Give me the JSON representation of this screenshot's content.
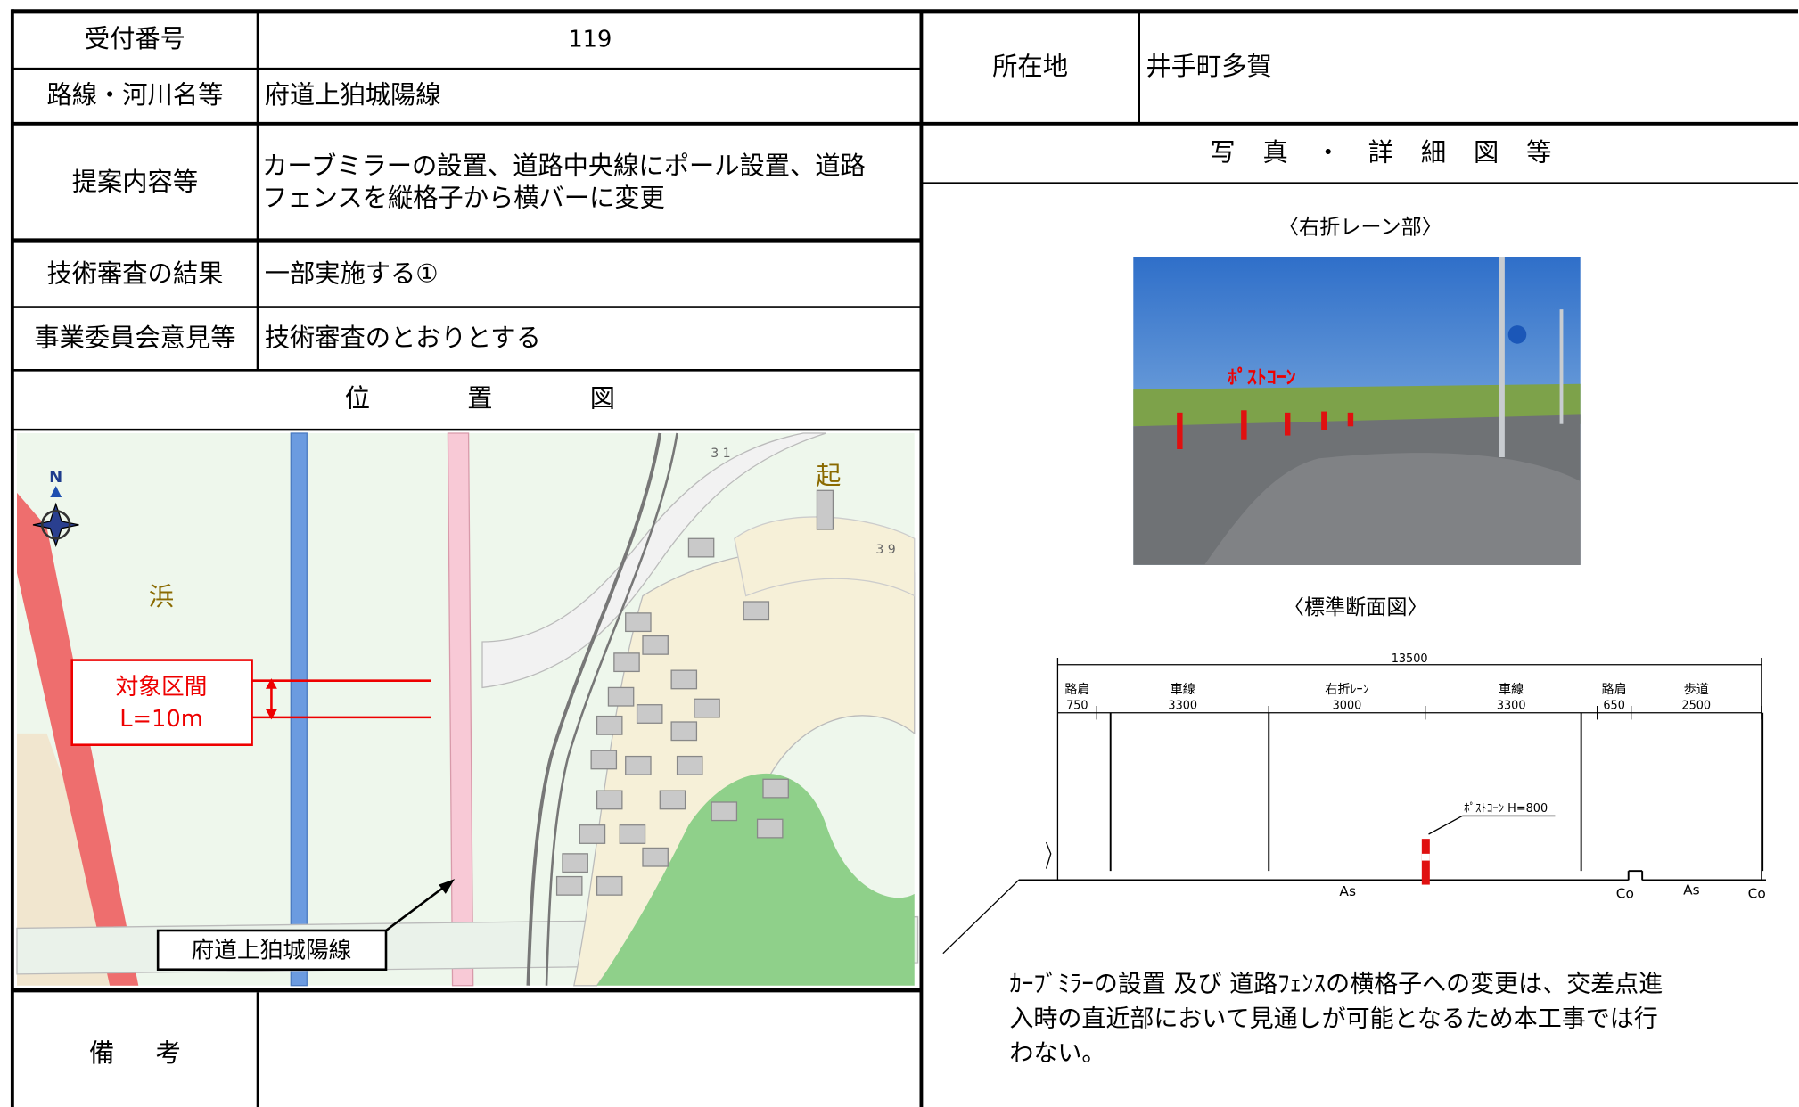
{
  "form": {
    "receipt_no_label": "受付番号",
    "receipt_no": "119",
    "route_label": "路線・河川名等",
    "route": "府道上狛城陽線",
    "location_label": "所在地",
    "location": "井手町多賀",
    "proposal_label": "提案内容等",
    "proposal_lines": [
      "カーブミラーの設置、道路中央線にポール設置、道路",
      "フェンスを縦格子から横バーに変更"
    ],
    "review_label": "技術審査の結果",
    "review": "一部実施する①",
    "committee_label": "事業委員会意見等",
    "committee": "技術審査のとおりとする",
    "map_heading": "位置図",
    "detail_heading": "写真・詳細図等",
    "remarks_label": "備考"
  },
  "map": {
    "labels": [
      "浜",
      "起",
      "N",
      "3 1",
      "3 9"
    ],
    "section_label": "対象区間",
    "section_length": "L=10m",
    "road_label": "府道上狛城陽線"
  },
  "photo": {
    "title": "〈右折レーン部〉",
    "annotation": "ﾎﾟｽﾄｺｰﾝ"
  },
  "cross_section": {
    "title": "〈標準断面図〉",
    "total_width": 13500,
    "segments": [
      {
        "name": "路肩",
        "width": 750
      },
      {
        "name": "車線",
        "width": 3300
      },
      {
        "name": "右折ﾚｰﾝ",
        "width": 3000
      },
      {
        "name": "車線",
        "width": 3300
      },
      {
        "name": "路肩",
        "width": 650
      },
      {
        "name": "歩道",
        "width": 2500
      }
    ],
    "post_label": "ﾎﾟｽﾄｺｰﾝ H=800",
    "materials": [
      "As",
      "Co",
      "As",
      "Co"
    ]
  },
  "note_lines": [
    "ｶｰﾌﾞﾐﾗｰの設置 及び 道路ﾌｪﾝｽの横格子への変更は、交差点進",
    "入時の直近部において見通しが可能となるため本工事では行",
    "わない。"
  ]
}
